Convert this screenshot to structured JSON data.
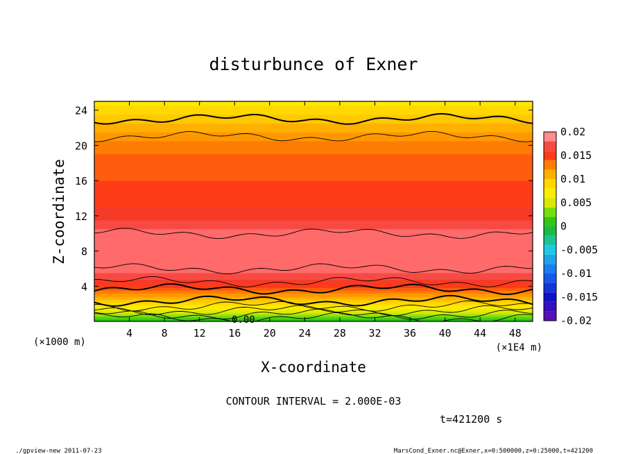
{
  "chart_data": {
    "type": "heatmap",
    "title": "disturbunce of Exner",
    "xlabel": "X-coordinate",
    "ylabel": "Z-coordinate",
    "x_unit_left": "(×1000 m)",
    "x_unit_right": "(×1E4 m)",
    "x_ticks": [
      4,
      8,
      12,
      16,
      20,
      24,
      28,
      32,
      36,
      40,
      44,
      48
    ],
    "y_ticks": [
      4,
      8,
      12,
      16,
      20,
      24
    ],
    "xlim": [
      0,
      50
    ],
    "ylim": [
      0,
      25
    ],
    "colorbar": {
      "range": [
        -0.02,
        0.02
      ],
      "tick_labels": [
        "0.02",
        "0.015",
        "0.01",
        "0.005",
        "0",
        "-0.005",
        "-0.01",
        "-0.015",
        "-0.02"
      ],
      "tick_values": [
        0.02,
        0.015,
        0.01,
        0.005,
        0,
        -0.005,
        -0.01,
        -0.015,
        -0.02
      ]
    },
    "contour_interval_text": "CONTOUR INTERVAL = 2.000E-03",
    "time_text": "t=421200 s",
    "zero_label": "0.00",
    "profile_z": [
      0,
      1,
      2,
      3,
      4,
      5,
      6,
      8,
      10,
      12,
      14,
      16,
      18,
      20,
      22,
      24,
      25
    ],
    "profile_value": [
      0.0,
      0.005,
      0.009,
      0.012,
      0.015,
      0.017,
      0.018,
      0.0185,
      0.018,
      0.016,
      0.015,
      0.0145,
      0.014,
      0.013,
      0.011,
      0.009,
      0.008
    ]
  },
  "footer": {
    "left": "./gpview-new   2011-07-23",
    "right": "MarsCond_Exner.nc@Exner,x=0:500000,z=0:25000,t=421200"
  }
}
